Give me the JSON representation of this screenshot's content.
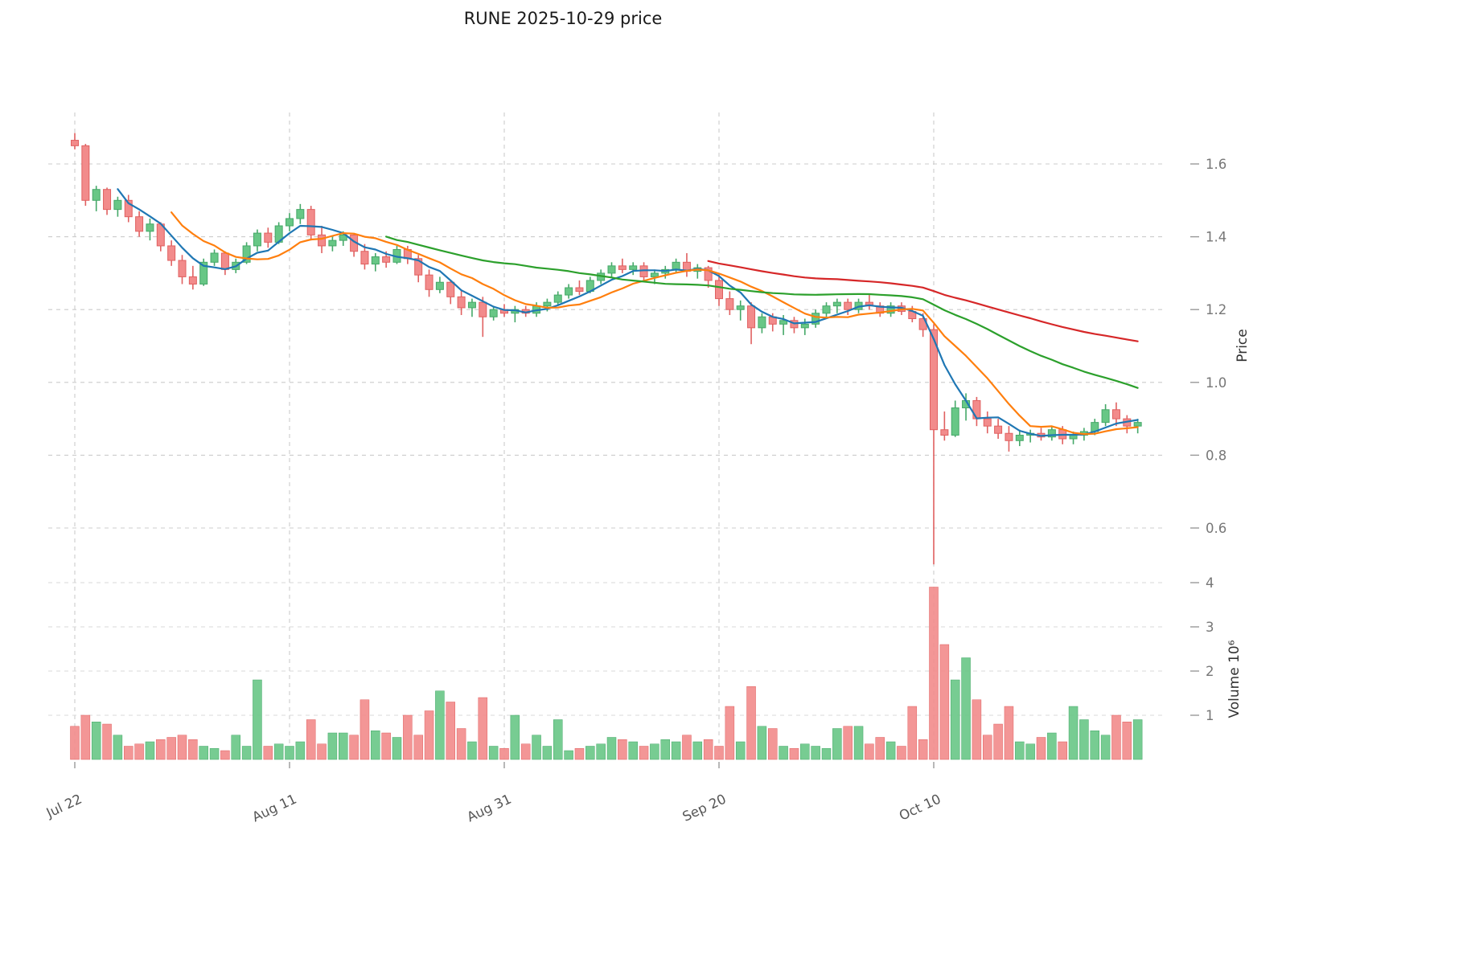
{
  "chart_data": {
    "type": "candlestick",
    "title": "RUNE  2025-10-29  price",
    "ylabel_price": "Price",
    "ylabel_volume": "Volume  10⁶",
    "price_ticks": [
      0.6,
      0.8,
      1.0,
      1.2,
      1.4,
      1.6
    ],
    "volume_ticks": [
      1,
      2,
      3,
      4
    ],
    "x_ticks": [
      {
        "index": 0,
        "label": "Jul 22"
      },
      {
        "index": 20,
        "label": "Aug 11"
      },
      {
        "index": 40,
        "label": "Aug 31"
      },
      {
        "index": 60,
        "label": "Sep 20"
      },
      {
        "index": 80,
        "label": "Oct 10"
      }
    ],
    "price_range": [
      0.5,
      1.75
    ],
    "volume_unit": "millions",
    "legend_position": "none",
    "grid": true,
    "moving_averages": [
      {
        "window": 5,
        "color": "#1f77b4"
      },
      {
        "window": 10,
        "color": "#ff7f0e"
      },
      {
        "window": 30,
        "color": "#2ca02c"
      },
      {
        "window": 60,
        "color": "#d62728"
      }
    ],
    "colors": {
      "up_fill": "#68c786",
      "up_edge": "#45a868",
      "down_fill": "#f28b8b",
      "down_edge": "#e06060",
      "grid": "#cccccc",
      "tick_text": "#777777",
      "xtick_text": "#555555",
      "title_text": "#1a1a1a"
    },
    "columns": [
      "date",
      "open",
      "high",
      "low",
      "close",
      "volume_millions"
    ],
    "rows": [
      [
        "2025-07-22",
        1.665,
        1.685,
        1.64,
        1.65,
        0.75
      ],
      [
        "2025-07-23",
        1.65,
        1.655,
        1.485,
        1.5,
        1.0
      ],
      [
        "2025-07-24",
        1.5,
        1.54,
        1.47,
        1.53,
        0.85
      ],
      [
        "2025-07-25",
        1.53,
        1.535,
        1.46,
        1.475,
        0.8
      ],
      [
        "2025-07-26",
        1.475,
        1.51,
        1.455,
        1.5,
        0.55
      ],
      [
        "2025-07-27",
        1.5,
        1.515,
        1.44,
        1.455,
        0.3
      ],
      [
        "2025-07-28",
        1.455,
        1.47,
        1.4,
        1.415,
        0.35
      ],
      [
        "2025-07-29",
        1.415,
        1.45,
        1.39,
        1.435,
        0.4
      ],
      [
        "2025-07-30",
        1.435,
        1.44,
        1.36,
        1.375,
        0.45
      ],
      [
        "2025-07-31",
        1.375,
        1.39,
        1.32,
        1.335,
        0.5
      ],
      [
        "2025-08-01",
        1.335,
        1.35,
        1.27,
        1.29,
        0.55
      ],
      [
        "2025-08-02",
        1.29,
        1.32,
        1.255,
        1.27,
        0.45
      ],
      [
        "2025-08-03",
        1.27,
        1.34,
        1.265,
        1.33,
        0.3
      ],
      [
        "2025-08-04",
        1.33,
        1.365,
        1.32,
        1.355,
        0.25
      ],
      [
        "2025-08-05",
        1.355,
        1.36,
        1.295,
        1.31,
        0.2
      ],
      [
        "2025-08-06",
        1.31,
        1.34,
        1.3,
        1.33,
        0.55
      ],
      [
        "2025-08-07",
        1.33,
        1.385,
        1.325,
        1.375,
        0.3
      ],
      [
        "2025-08-08",
        1.375,
        1.42,
        1.36,
        1.41,
        1.8
      ],
      [
        "2025-08-09",
        1.41,
        1.425,
        1.37,
        1.385,
        0.3
      ],
      [
        "2025-08-10",
        1.385,
        1.44,
        1.38,
        1.43,
        0.35
      ],
      [
        "2025-08-11",
        1.43,
        1.465,
        1.415,
        1.45,
        0.3
      ],
      [
        "2025-08-12",
        1.45,
        1.49,
        1.435,
        1.475,
        0.4
      ],
      [
        "2025-08-13",
        1.475,
        1.485,
        1.39,
        1.405,
        0.9
      ],
      [
        "2025-08-14",
        1.405,
        1.43,
        1.355,
        1.375,
        0.35
      ],
      [
        "2025-08-15",
        1.375,
        1.4,
        1.36,
        1.39,
        0.6
      ],
      [
        "2025-08-16",
        1.39,
        1.415,
        1.375,
        1.405,
        0.6
      ],
      [
        "2025-08-17",
        1.405,
        1.41,
        1.345,
        1.36,
        0.55
      ],
      [
        "2025-08-18",
        1.36,
        1.38,
        1.31,
        1.325,
        1.35
      ],
      [
        "2025-08-19",
        1.325,
        1.355,
        1.305,
        1.345,
        0.65
      ],
      [
        "2025-08-20",
        1.345,
        1.36,
        1.315,
        1.33,
        0.6
      ],
      [
        "2025-08-21",
        1.33,
        1.375,
        1.325,
        1.365,
        0.5
      ],
      [
        "2025-08-22",
        1.365,
        1.375,
        1.325,
        1.34,
        1.0
      ],
      [
        "2025-08-23",
        1.34,
        1.35,
        1.275,
        1.295,
        0.55
      ],
      [
        "2025-08-24",
        1.295,
        1.31,
        1.235,
        1.255,
        1.1
      ],
      [
        "2025-08-25",
        1.255,
        1.29,
        1.245,
        1.275,
        1.55
      ],
      [
        "2025-08-26",
        1.275,
        1.28,
        1.215,
        1.235,
        1.3
      ],
      [
        "2025-08-27",
        1.235,
        1.255,
        1.185,
        1.205,
        0.7
      ],
      [
        "2025-08-28",
        1.205,
        1.23,
        1.18,
        1.22,
        0.4
      ],
      [
        "2025-08-29",
        1.22,
        1.235,
        1.125,
        1.18,
        1.4
      ],
      [
        "2025-08-30",
        1.18,
        1.21,
        1.17,
        1.2,
        0.3
      ],
      [
        "2025-08-31",
        1.2,
        1.215,
        1.18,
        1.19,
        0.25
      ],
      [
        "2025-09-01",
        1.19,
        1.21,
        1.165,
        1.2,
        1.0
      ],
      [
        "2025-09-02",
        1.2,
        1.21,
        1.18,
        1.19,
        0.35
      ],
      [
        "2025-09-03",
        1.19,
        1.22,
        1.18,
        1.21,
        0.55
      ],
      [
        "2025-09-04",
        1.21,
        1.23,
        1.195,
        1.22,
        0.3
      ],
      [
        "2025-09-05",
        1.22,
        1.25,
        1.21,
        1.24,
        0.9
      ],
      [
        "2025-09-06",
        1.24,
        1.27,
        1.23,
        1.26,
        0.2
      ],
      [
        "2025-09-07",
        1.26,
        1.28,
        1.24,
        1.25,
        0.25
      ],
      [
        "2025-09-08",
        1.25,
        1.29,
        1.245,
        1.28,
        0.3
      ],
      [
        "2025-09-09",
        1.28,
        1.31,
        1.27,
        1.3,
        0.35
      ],
      [
        "2025-09-10",
        1.3,
        1.33,
        1.29,
        1.32,
        0.5
      ],
      [
        "2025-09-11",
        1.32,
        1.34,
        1.3,
        1.31,
        0.45
      ],
      [
        "2025-09-12",
        1.31,
        1.33,
        1.295,
        1.32,
        0.4
      ],
      [
        "2025-09-13",
        1.32,
        1.33,
        1.28,
        1.29,
        0.3
      ],
      [
        "2025-09-14",
        1.29,
        1.31,
        1.27,
        1.3,
        0.35
      ],
      [
        "2025-09-15",
        1.3,
        1.32,
        1.285,
        1.31,
        0.45
      ],
      [
        "2025-09-16",
        1.31,
        1.34,
        1.3,
        1.33,
        0.4
      ],
      [
        "2025-09-17",
        1.33,
        1.355,
        1.29,
        1.305,
        0.55
      ],
      [
        "2025-09-18",
        1.305,
        1.325,
        1.285,
        1.315,
        0.4
      ],
      [
        "2025-09-19",
        1.315,
        1.32,
        1.26,
        1.28,
        0.45
      ],
      [
        "2025-09-20",
        1.28,
        1.3,
        1.21,
        1.23,
        0.3
      ],
      [
        "2025-09-21",
        1.23,
        1.25,
        1.185,
        1.2,
        1.2
      ],
      [
        "2025-09-22",
        1.2,
        1.225,
        1.17,
        1.21,
        0.4
      ],
      [
        "2025-09-23",
        1.21,
        1.22,
        1.105,
        1.15,
        1.65
      ],
      [
        "2025-09-24",
        1.15,
        1.19,
        1.135,
        1.18,
        0.75
      ],
      [
        "2025-09-25",
        1.18,
        1.19,
        1.14,
        1.16,
        0.7
      ],
      [
        "2025-09-26",
        1.16,
        1.185,
        1.13,
        1.17,
        0.3
      ],
      [
        "2025-09-27",
        1.17,
        1.18,
        1.135,
        1.15,
        0.25
      ],
      [
        "2025-09-28",
        1.15,
        1.175,
        1.13,
        1.16,
        0.35
      ],
      [
        "2025-09-29",
        1.16,
        1.2,
        1.15,
        1.19,
        0.3
      ],
      [
        "2025-09-30",
        1.19,
        1.22,
        1.18,
        1.21,
        0.25
      ],
      [
        "2025-10-01",
        1.21,
        1.23,
        1.19,
        1.22,
        0.7
      ],
      [
        "2025-10-02",
        1.22,
        1.23,
        1.185,
        1.2,
        0.75
      ],
      [
        "2025-10-03",
        1.2,
        1.23,
        1.19,
        1.22,
        0.75
      ],
      [
        "2025-10-04",
        1.22,
        1.24,
        1.2,
        1.21,
        0.35
      ],
      [
        "2025-10-05",
        1.21,
        1.22,
        1.18,
        1.19,
        0.5
      ],
      [
        "2025-10-06",
        1.19,
        1.22,
        1.18,
        1.21,
        0.4
      ],
      [
        "2025-10-07",
        1.21,
        1.22,
        1.185,
        1.195,
        0.3
      ],
      [
        "2025-10-08",
        1.195,
        1.21,
        1.165,
        1.175,
        1.2
      ],
      [
        "2025-10-09",
        1.175,
        1.19,
        1.125,
        1.145,
        0.45
      ],
      [
        "2025-10-10",
        1.145,
        1.16,
        0.5,
        0.87,
        3.9
      ],
      [
        "2025-10-11",
        0.87,
        0.92,
        0.84,
        0.855,
        2.6
      ],
      [
        "2025-10-12",
        0.855,
        0.95,
        0.85,
        0.93,
        1.8
      ],
      [
        "2025-10-13",
        0.93,
        0.97,
        0.895,
        0.95,
        2.3
      ],
      [
        "2025-10-14",
        0.95,
        0.96,
        0.88,
        0.9,
        1.35
      ],
      [
        "2025-10-15",
        0.9,
        0.92,
        0.86,
        0.88,
        0.55
      ],
      [
        "2025-10-16",
        0.88,
        0.9,
        0.845,
        0.86,
        0.8
      ],
      [
        "2025-10-17",
        0.86,
        0.88,
        0.81,
        0.84,
        1.2
      ],
      [
        "2025-10-18",
        0.84,
        0.87,
        0.825,
        0.855,
        0.4
      ],
      [
        "2025-10-19",
        0.855,
        0.87,
        0.835,
        0.86,
        0.35
      ],
      [
        "2025-10-20",
        0.86,
        0.875,
        0.84,
        0.85,
        0.5
      ],
      [
        "2025-10-21",
        0.85,
        0.88,
        0.84,
        0.87,
        0.6
      ],
      [
        "2025-10-22",
        0.87,
        0.88,
        0.83,
        0.845,
        0.4
      ],
      [
        "2025-10-23",
        0.845,
        0.865,
        0.83,
        0.855,
        1.2
      ],
      [
        "2025-10-24",
        0.855,
        0.875,
        0.84,
        0.865,
        0.9
      ],
      [
        "2025-10-25",
        0.865,
        0.9,
        0.855,
        0.89,
        0.65
      ],
      [
        "2025-10-26",
        0.89,
        0.94,
        0.88,
        0.925,
        0.55
      ],
      [
        "2025-10-27",
        0.925,
        0.945,
        0.88,
        0.9,
        1.0
      ],
      [
        "2025-10-28",
        0.9,
        0.91,
        0.86,
        0.88,
        0.85
      ],
      [
        "2025-10-29",
        0.88,
        0.9,
        0.86,
        0.89,
        0.9
      ]
    ]
  }
}
